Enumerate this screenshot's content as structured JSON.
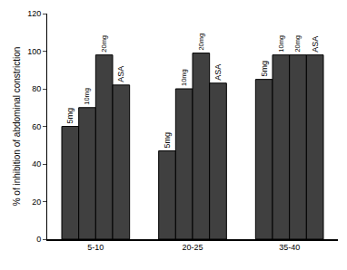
{
  "chart_data": {
    "type": "bar",
    "y_label": "% of inhibition of abdominal constriction",
    "categories": [
      "5-10",
      "20-25",
      "35-40"
    ],
    "series": [
      {
        "name": "5mg",
        "color": "#404040",
        "values": [
          60,
          47,
          85
        ]
      },
      {
        "name": "10mg",
        "color": "#404040",
        "values": [
          70,
          80,
          98
        ]
      },
      {
        "name": "20mg",
        "color": "#404040",
        "values": [
          98,
          99,
          98
        ]
      },
      {
        "name": "ASA",
        "color": "#404040",
        "values": [
          82,
          83,
          98
        ]
      }
    ],
    "ylim": [
      0,
      120
    ],
    "yticks": [
      0,
      20,
      40,
      60,
      80,
      100,
      120
    ],
    "grid": false
  }
}
